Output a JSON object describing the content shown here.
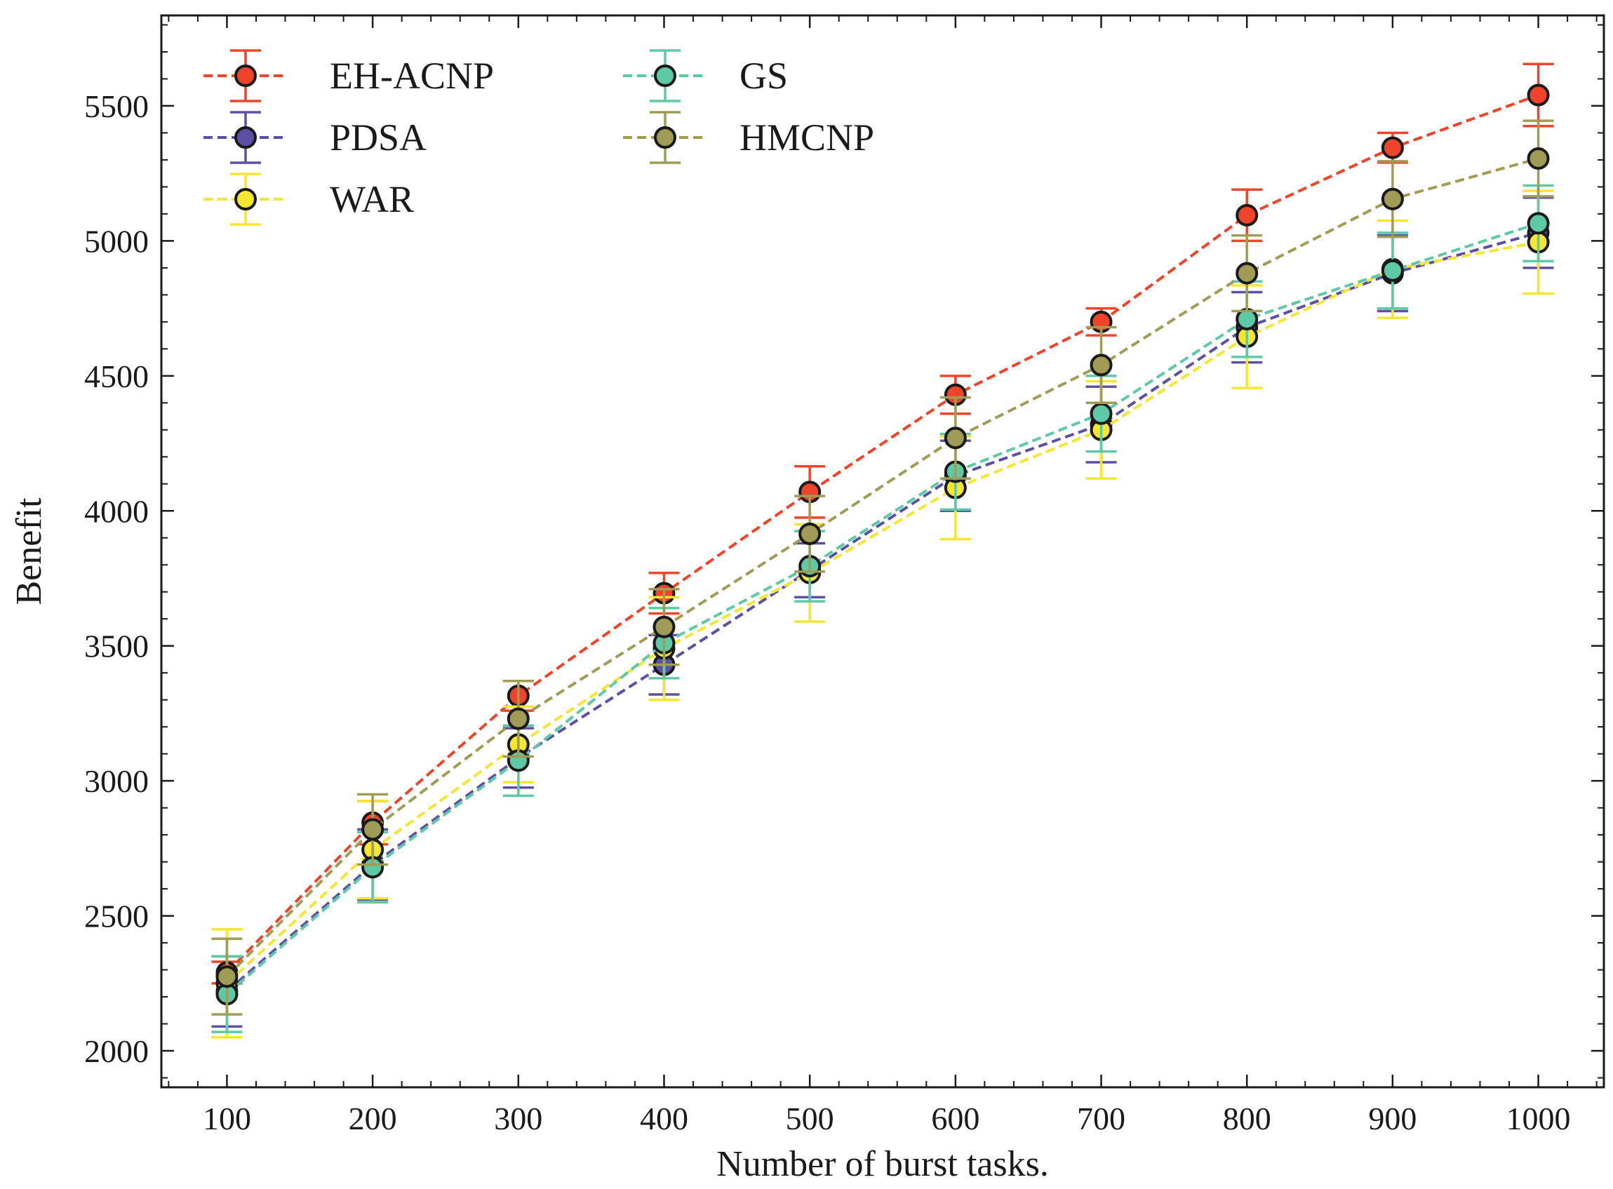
{
  "chart_data": {
    "type": "line",
    "title": "",
    "xlabel": "Number of burst tasks.",
    "ylabel": "Benefit",
    "x": [
      100,
      200,
      300,
      400,
      500,
      600,
      700,
      800,
      900,
      1000
    ],
    "xlim": [
      55,
      1045
    ],
    "ylim": [
      1865,
      5835
    ],
    "xticks": [
      100,
      200,
      300,
      400,
      500,
      600,
      700,
      800,
      900,
      1000
    ],
    "xtick_labels": [
      "100",
      "200",
      "300",
      "400",
      "500",
      "600",
      "700",
      "800",
      "900",
      "1000"
    ],
    "yticks": [
      2000,
      2500,
      3000,
      3500,
      4000,
      4500,
      5000,
      5500
    ],
    "ytick_labels": [
      "2000",
      "2500",
      "3000",
      "3500",
      "4000",
      "4500",
      "5000",
      "5500"
    ],
    "grid": false,
    "legend_position": "top-left",
    "line_style": "dashed",
    "marker": "circle",
    "series": [
      {
        "name": "EH-ACNP",
        "color": "#f0442a",
        "values": [
          2290,
          2845,
          3315,
          3695,
          4070,
          4430,
          4700,
          5095,
          5345,
          5540
        ],
        "errors": [
          40,
          80,
          55,
          75,
          95,
          70,
          50,
          95,
          55,
          115
        ]
      },
      {
        "name": "PDSA",
        "color": "#5b4fa6",
        "values": [
          2220,
          2690,
          3085,
          3430,
          3780,
          4130,
          4320,
          4680,
          4880,
          5030
        ],
        "errors": [
          130,
          130,
          110,
          110,
          100,
          130,
          140,
          130,
          140,
          130
        ]
      },
      {
        "name": "WAR",
        "color": "#f5e630",
        "values": [
          2250,
          2745,
          3135,
          3490,
          3770,
          4085,
          4300,
          4645,
          4895,
          4995
        ],
        "errors": [
          200,
          180,
          140,
          190,
          180,
          190,
          180,
          190,
          180,
          190
        ]
      },
      {
        "name": "GS",
        "color": "#5dc9a6",
        "values": [
          2210,
          2680,
          3075,
          3510,
          3795,
          4145,
          4360,
          4710,
          4890,
          5065
        ],
        "errors": [
          140,
          130,
          130,
          130,
          130,
          140,
          140,
          140,
          140,
          140
        ]
      },
      {
        "name": "HMCNP",
        "color": "#a09c55",
        "values": [
          2275,
          2820,
          3230,
          3570,
          3915,
          4270,
          4540,
          4880,
          5155,
          5305
        ],
        "errors": [
          140,
          130,
          140,
          140,
          140,
          150,
          140,
          140,
          140,
          140
        ]
      }
    ]
  }
}
